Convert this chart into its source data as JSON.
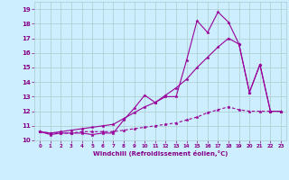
{
  "x": [
    0,
    1,
    2,
    3,
    4,
    5,
    6,
    7,
    8,
    9,
    10,
    11,
    12,
    13,
    14,
    15,
    16,
    17,
    18,
    19,
    20,
    21,
    22,
    23
  ],
  "y_jagged": [
    10.6,
    10.4,
    10.5,
    10.5,
    10.5,
    10.4,
    10.5,
    10.5,
    11.4,
    12.2,
    13.1,
    12.6,
    13.0,
    13.0,
    15.5,
    18.2,
    17.4,
    18.8,
    18.1,
    16.6,
    13.3,
    15.2,
    12.0,
    12.0
  ],
  "y_diagonal": [
    10.6,
    10.5,
    10.6,
    10.7,
    10.8,
    10.9,
    11.0,
    11.1,
    11.5,
    11.9,
    12.3,
    12.6,
    13.1,
    13.6,
    14.2,
    15.0,
    15.7,
    16.4,
    17.0,
    16.6,
    13.3,
    15.2,
    12.0,
    12.0
  ],
  "y_flat": [
    10.6,
    10.5,
    10.5,
    10.5,
    10.6,
    10.6,
    10.6,
    10.6,
    10.7,
    10.8,
    10.9,
    11.0,
    11.1,
    11.2,
    11.4,
    11.6,
    11.9,
    12.1,
    12.3,
    12.1,
    12.0,
    12.0,
    12.0,
    12.0
  ],
  "color": "#990099",
  "bg_color": "#cceeff",
  "grid_color": "#aacccc",
  "text_color": "#880088",
  "xlabel": "Windchill (Refroidissement éolien,°C)",
  "ylim": [
    10.0,
    19.5
  ],
  "xlim": [
    -0.5,
    23.5
  ],
  "yticks": [
    10,
    11,
    12,
    13,
    14,
    15,
    16,
    17,
    18,
    19
  ],
  "xticks": [
    0,
    1,
    2,
    3,
    4,
    5,
    6,
    7,
    8,
    9,
    10,
    11,
    12,
    13,
    14,
    15,
    16,
    17,
    18,
    19,
    20,
    21,
    22,
    23
  ]
}
